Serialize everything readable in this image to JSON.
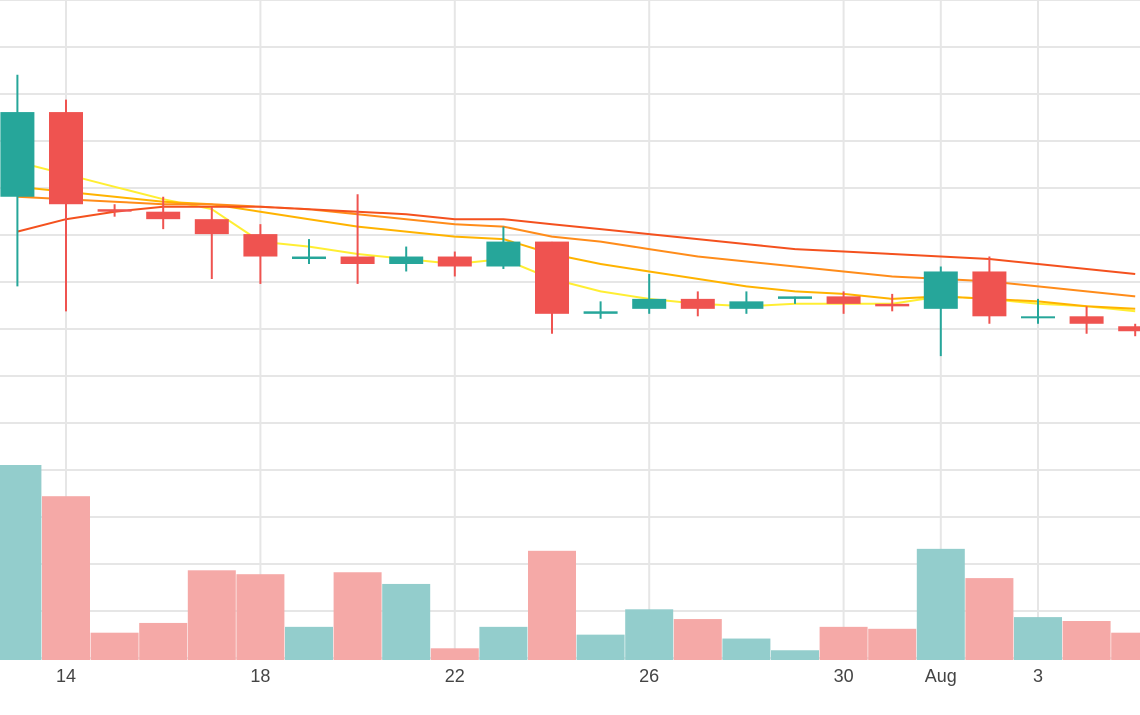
{
  "chart_data": {
    "type": "candlestick",
    "x_tick_labels": [
      {
        "date": "2020-07-14",
        "label": "14"
      },
      {
        "date": "2020-07-18",
        "label": "18"
      },
      {
        "date": "2020-07-22",
        "label": "22"
      },
      {
        "date": "2020-07-26",
        "label": "26"
      },
      {
        "date": "2020-07-30",
        "label": "30"
      },
      {
        "date": "2020-08-01",
        "label": "Aug"
      },
      {
        "date": "2020-08-03",
        "label": "3"
      }
    ],
    "price_range": [
      8.1,
      10.75
    ],
    "volume_range": [
      0,
      100
    ],
    "grid": true,
    "colors": {
      "up": "#26a69a",
      "down": "#ef5350",
      "volume_up": "#93cdcc",
      "volume_down": "#f5a9a7",
      "grid": "#e6e6e6",
      "ma_lines": [
        "#ffee33",
        "#ffb300",
        "#ff8c1a",
        "#f4511e"
      ]
    },
    "candles": [
      {
        "date": "2020-07-13",
        "open": 9.96,
        "high": 10.45,
        "low": 9.6,
        "close": 10.3,
        "volume": 100
      },
      {
        "date": "2020-07-14",
        "open": 10.3,
        "high": 10.35,
        "low": 9.5,
        "close": 9.93,
        "volume": 84
      },
      {
        "date": "2020-07-15",
        "open": 9.91,
        "high": 9.93,
        "low": 9.88,
        "close": 9.9,
        "volume": 14
      },
      {
        "date": "2020-07-16",
        "open": 9.9,
        "high": 9.96,
        "low": 9.83,
        "close": 9.87,
        "volume": 19
      },
      {
        "date": "2020-07-17",
        "open": 9.87,
        "high": 9.92,
        "low": 9.63,
        "close": 9.81,
        "volume": 46
      },
      {
        "date": "2020-07-18",
        "open": 9.81,
        "high": 9.85,
        "low": 9.61,
        "close": 9.72,
        "volume": 44
      },
      {
        "date": "2020-07-19",
        "open": 9.71,
        "high": 9.79,
        "low": 9.69,
        "close": 9.72,
        "volume": 17
      },
      {
        "date": "2020-07-20",
        "open": 9.72,
        "high": 9.97,
        "low": 9.61,
        "close": 9.69,
        "volume": 45
      },
      {
        "date": "2020-07-21",
        "open": 9.69,
        "high": 9.76,
        "low": 9.66,
        "close": 9.72,
        "volume": 39
      },
      {
        "date": "2020-07-22",
        "open": 9.72,
        "high": 9.74,
        "low": 9.64,
        "close": 9.68,
        "volume": 6
      },
      {
        "date": "2020-07-23",
        "open": 9.68,
        "high": 9.84,
        "low": 9.67,
        "close": 9.78,
        "volume": 17
      },
      {
        "date": "2020-07-24",
        "open": 9.78,
        "high": 9.78,
        "low": 9.41,
        "close": 9.49,
        "volume": 56
      },
      {
        "date": "2020-07-25",
        "open": 9.49,
        "high": 9.54,
        "low": 9.47,
        "close": 9.5,
        "volume": 13
      },
      {
        "date": "2020-07-26",
        "open": 9.51,
        "high": 9.65,
        "low": 9.49,
        "close": 9.55,
        "volume": 26
      },
      {
        "date": "2020-07-27",
        "open": 9.55,
        "high": 9.58,
        "low": 9.48,
        "close": 9.51,
        "volume": 21
      },
      {
        "date": "2020-07-28",
        "open": 9.51,
        "high": 9.58,
        "low": 9.49,
        "close": 9.54,
        "volume": 11
      },
      {
        "date": "2020-07-29",
        "open": 9.55,
        "high": 9.56,
        "low": 9.53,
        "close": 9.56,
        "volume": 5
      },
      {
        "date": "2020-07-30",
        "open": 9.56,
        "high": 9.58,
        "low": 9.49,
        "close": 9.53,
        "volume": 17
      },
      {
        "date": "2020-07-31",
        "open": 9.53,
        "high": 9.57,
        "low": 9.5,
        "close": 9.52,
        "volume": 16
      },
      {
        "date": "2020-08-01",
        "open": 9.51,
        "high": 9.68,
        "low": 9.32,
        "close": 9.66,
        "volume": 57
      },
      {
        "date": "2020-08-02",
        "open": 9.66,
        "high": 9.72,
        "low": 9.45,
        "close": 9.48,
        "volume": 42
      },
      {
        "date": "2020-08-03",
        "open": 9.48,
        "high": 9.55,
        "low": 9.45,
        "close": 9.48,
        "volume": 22
      },
      {
        "date": "2020-08-04",
        "open": 9.48,
        "high": 9.52,
        "low": 9.41,
        "close": 9.45,
        "volume": 20
      },
      {
        "date": "2020-08-05",
        "open": 9.44,
        "high": 9.45,
        "low": 9.4,
        "close": 9.42,
        "volume": 14
      }
    ],
    "moving_averages": [
      {
        "color": "#ffee33",
        "values": [
          10.1,
          10.05,
          10.0,
          9.95,
          9.91,
          9.78,
          9.76,
          9.73,
          9.71,
          9.69,
          9.71,
          9.63,
          9.58,
          9.55,
          9.53,
          9.52,
          9.53,
          9.53,
          9.53,
          9.56,
          9.55,
          9.53,
          9.52,
          9.5
        ]
      },
      {
        "color": "#ffb300",
        "values": [
          10.0,
          9.98,
          9.96,
          9.94,
          9.93,
          9.9,
          9.87,
          9.84,
          9.82,
          9.8,
          9.79,
          9.73,
          9.69,
          9.66,
          9.63,
          9.6,
          9.58,
          9.57,
          9.55,
          9.56,
          9.55,
          9.54,
          9.52,
          9.51
        ]
      },
      {
        "color": "#ff8c1a",
        "values": [
          9.96,
          9.95,
          9.94,
          9.93,
          9.93,
          9.92,
          9.91,
          9.89,
          9.87,
          9.85,
          9.84,
          9.8,
          9.78,
          9.75,
          9.72,
          9.7,
          9.68,
          9.66,
          9.64,
          9.63,
          9.62,
          9.6,
          9.58,
          9.56
        ]
      },
      {
        "color": "#f4511e",
        "values": [
          9.82,
          9.87,
          9.9,
          9.92,
          9.92,
          9.92,
          9.91,
          9.9,
          9.89,
          9.87,
          9.87,
          9.85,
          9.83,
          9.81,
          9.79,
          9.77,
          9.75,
          9.74,
          9.73,
          9.72,
          9.71,
          9.69,
          9.67,
          9.65
        ]
      }
    ]
  }
}
